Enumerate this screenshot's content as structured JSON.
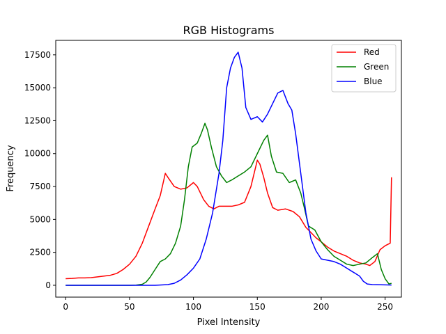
{
  "chart_data": {
    "type": "line",
    "title": "RGB Histograms",
    "xlabel": "Pixel Intensity",
    "ylabel": "Frequency",
    "xlim": [
      -7.75,
      262.75
    ],
    "ylim": [
      -900,
      18600
    ],
    "xticks": [
      0,
      50,
      100,
      150,
      200,
      250
    ],
    "yticks": [
      0,
      2500,
      5000,
      7500,
      10000,
      12500,
      15000,
      17500
    ],
    "grid": false,
    "legend_position": "top-right",
    "series": [
      {
        "name": "Red",
        "color": "#ff0000",
        "points": [
          [
            0,
            500
          ],
          [
            5,
            520
          ],
          [
            10,
            560
          ],
          [
            15,
            560
          ],
          [
            20,
            580
          ],
          [
            25,
            640
          ],
          [
            30,
            700
          ],
          [
            35,
            760
          ],
          [
            40,
            900
          ],
          [
            45,
            1200
          ],
          [
            50,
            1600
          ],
          [
            55,
            2200
          ],
          [
            60,
            3200
          ],
          [
            65,
            4500
          ],
          [
            70,
            5800
          ],
          [
            74,
            6800
          ],
          [
            78,
            8500
          ],
          [
            80,
            8200
          ],
          [
            85,
            7500
          ],
          [
            90,
            7300
          ],
          [
            95,
            7400
          ],
          [
            100,
            7800
          ],
          [
            103,
            7500
          ],
          [
            108,
            6500
          ],
          [
            112,
            6000
          ],
          [
            116,
            5800
          ],
          [
            120,
            6000
          ],
          [
            125,
            6000
          ],
          [
            130,
            6000
          ],
          [
            135,
            6100
          ],
          [
            140,
            6300
          ],
          [
            145,
            7500
          ],
          [
            150,
            9500
          ],
          [
            152,
            9200
          ],
          [
            155,
            8200
          ],
          [
            158,
            7000
          ],
          [
            162,
            5900
          ],
          [
            166,
            5700
          ],
          [
            172,
            5800
          ],
          [
            178,
            5600
          ],
          [
            183,
            5200
          ],
          [
            188,
            4400
          ],
          [
            192,
            4000
          ],
          [
            196,
            3600
          ],
          [
            200,
            3300
          ],
          [
            205,
            2900
          ],
          [
            210,
            2600
          ],
          [
            215,
            2400
          ],
          [
            220,
            2200
          ],
          [
            225,
            1900
          ],
          [
            230,
            1700
          ],
          [
            235,
            1600
          ],
          [
            238,
            1500
          ],
          [
            242,
            1800
          ],
          [
            246,
            2700
          ],
          [
            250,
            3000
          ],
          [
            254,
            3200
          ],
          [
            255,
            8200
          ]
        ]
      },
      {
        "name": "Green",
        "color": "#008000",
        "points": [
          [
            0,
            0
          ],
          [
            20,
            0
          ],
          [
            40,
            0
          ],
          [
            50,
            0
          ],
          [
            55,
            10
          ],
          [
            60,
            80
          ],
          [
            63,
            250
          ],
          [
            66,
            600
          ],
          [
            70,
            1200
          ],
          [
            74,
            1800
          ],
          [
            78,
            2000
          ],
          [
            82,
            2400
          ],
          [
            86,
            3200
          ],
          [
            90,
            4500
          ],
          [
            93,
            6500
          ],
          [
            96,
            9000
          ],
          [
            99,
            10500
          ],
          [
            103,
            10800
          ],
          [
            106,
            11500
          ],
          [
            109,
            12300
          ],
          [
            111,
            11800
          ],
          [
            114,
            10500
          ],
          [
            118,
            9000
          ],
          [
            122,
            8300
          ],
          [
            126,
            7800
          ],
          [
            130,
            8000
          ],
          [
            135,
            8300
          ],
          [
            140,
            8600
          ],
          [
            145,
            9000
          ],
          [
            150,
            10000
          ],
          [
            155,
            11000
          ],
          [
            158,
            11400
          ],
          [
            161,
            9800
          ],
          [
            165,
            8600
          ],
          [
            170,
            8500
          ],
          [
            175,
            7800
          ],
          [
            180,
            8000
          ],
          [
            184,
            7000
          ],
          [
            187,
            5800
          ],
          [
            190,
            4500
          ],
          [
            195,
            4200
          ],
          [
            200,
            3300
          ],
          [
            205,
            2700
          ],
          [
            210,
            2200
          ],
          [
            215,
            1900
          ],
          [
            220,
            1600
          ],
          [
            225,
            1500
          ],
          [
            230,
            1600
          ],
          [
            235,
            1700
          ],
          [
            240,
            2100
          ],
          [
            244,
            2400
          ],
          [
            247,
            1200
          ],
          [
            250,
            500
          ],
          [
            253,
            100
          ],
          [
            255,
            150
          ]
        ]
      },
      {
        "name": "Blue",
        "color": "#0000ff",
        "points": [
          [
            0,
            0
          ],
          [
            20,
            0
          ],
          [
            40,
            0
          ],
          [
            60,
            0
          ],
          [
            70,
            0
          ],
          [
            80,
            50
          ],
          [
            85,
            150
          ],
          [
            90,
            400
          ],
          [
            95,
            800
          ],
          [
            100,
            1300
          ],
          [
            105,
            2000
          ],
          [
            110,
            3500
          ],
          [
            115,
            5500
          ],
          [
            120,
            8500
          ],
          [
            123,
            11000
          ],
          [
            126,
            15000
          ],
          [
            129,
            16500
          ],
          [
            132,
            17300
          ],
          [
            135,
            17700
          ],
          [
            138,
            16500
          ],
          [
            141,
            13500
          ],
          [
            145,
            12600
          ],
          [
            150,
            12800
          ],
          [
            154,
            12400
          ],
          [
            158,
            13000
          ],
          [
            162,
            13800
          ],
          [
            166,
            14600
          ],
          [
            170,
            14800
          ],
          [
            174,
            13800
          ],
          [
            177,
            13300
          ],
          [
            180,
            11500
          ],
          [
            184,
            8500
          ],
          [
            188,
            5500
          ],
          [
            192,
            3500
          ],
          [
            196,
            2600
          ],
          [
            200,
            2000
          ],
          [
            205,
            1900
          ],
          [
            210,
            1800
          ],
          [
            215,
            1600
          ],
          [
            220,
            1300
          ],
          [
            225,
            1000
          ],
          [
            230,
            700
          ],
          [
            233,
            300
          ],
          [
            236,
            100
          ],
          [
            240,
            50
          ],
          [
            250,
            30
          ],
          [
            255,
            20
          ]
        ]
      }
    ]
  }
}
